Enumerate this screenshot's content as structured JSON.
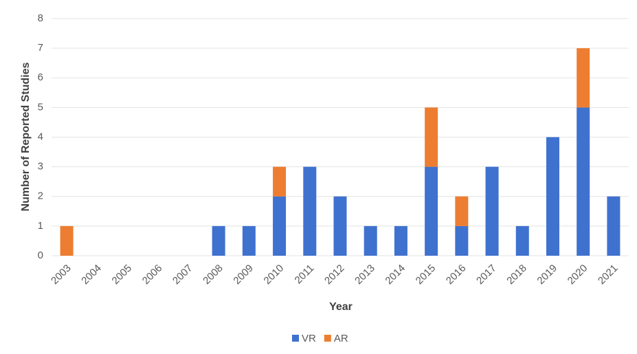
{
  "chart_data": {
    "type": "stacked_bar",
    "categories": [
      "2003",
      "2004",
      "2005",
      "2006",
      "2007",
      "2008",
      "2009",
      "2010",
      "2011",
      "2012",
      "2013",
      "2014",
      "2015",
      "2016",
      "2017",
      "2018",
      "2019",
      "2020",
      "2021"
    ],
    "series": [
      {
        "name": "VR",
        "color": "#3f71cf",
        "values": [
          0,
          0,
          0,
          0,
          0,
          1,
          1,
          2,
          3,
          2,
          1,
          1,
          3,
          1,
          3,
          1,
          4,
          5,
          2
        ]
      },
      {
        "name": "AR",
        "color": "#ed7d31",
        "values": [
          1,
          0,
          0,
          0,
          0,
          0,
          0,
          1,
          0,
          0,
          0,
          0,
          2,
          1,
          0,
          0,
          0,
          2,
          0
        ]
      }
    ],
    "xlabel": "Year",
    "ylabel": "Number of Reported Studies",
    "ylim": [
      0,
      8
    ],
    "yticks": [
      0,
      1,
      2,
      3,
      4,
      5,
      6,
      7,
      8
    ],
    "grid": true,
    "legend": "bottom"
  }
}
